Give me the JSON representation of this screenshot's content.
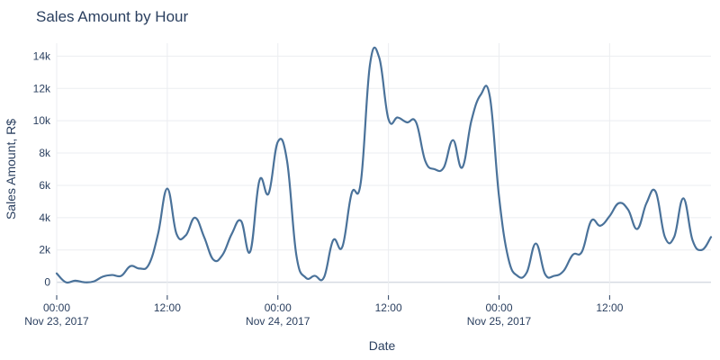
{
  "chart_data": {
    "type": "line",
    "title": "Sales Amount by Hour",
    "xlabel": "Date",
    "ylabel": "Sales Amount, R$",
    "x_unit": "hours since Nov 23, 2017 00:00",
    "xlim": [
      0,
      71
    ],
    "ylim": [
      -800,
      14800
    ],
    "grid": true,
    "line_color": "#4a729a",
    "x_ticks": [
      {
        "x": 0,
        "line1": "00:00",
        "line2": "Nov 23, 2017"
      },
      {
        "x": 12,
        "line1": "12:00",
        "line2": ""
      },
      {
        "x": 24,
        "line1": "00:00",
        "line2": "Nov 24, 2017"
      },
      {
        "x": 36,
        "line1": "12:00",
        "line2": ""
      },
      {
        "x": 48,
        "line1": "00:00",
        "line2": "Nov 25, 2017"
      },
      {
        "x": 60,
        "line1": "12:00",
        "line2": ""
      }
    ],
    "y_ticks": [
      {
        "y": 0,
        "label": "0"
      },
      {
        "y": 2000,
        "label": "2k"
      },
      {
        "y": 4000,
        "label": "4k"
      },
      {
        "y": 6000,
        "label": "6k"
      },
      {
        "y": 8000,
        "label": "8k"
      },
      {
        "y": 10000,
        "label": "10k"
      },
      {
        "y": 12000,
        "label": "12k"
      },
      {
        "y": 14000,
        "label": "14k"
      }
    ],
    "series": [
      {
        "name": "",
        "x": [
          0,
          1,
          2,
          3,
          4,
          5,
          6,
          7,
          8,
          9,
          10,
          11,
          12,
          13,
          14,
          15,
          16,
          17,
          18,
          19,
          20,
          21,
          22,
          23,
          24,
          25,
          26,
          27,
          28,
          29,
          30,
          31,
          32,
          33,
          34,
          35,
          36,
          37,
          38,
          39,
          40,
          41,
          42,
          43,
          44,
          45,
          46,
          47,
          48,
          49,
          50,
          51,
          52,
          53,
          54,
          55,
          56,
          57,
          58,
          59,
          60,
          61,
          62,
          63,
          64,
          65,
          66,
          67,
          68,
          69,
          70,
          71
        ],
        "y": [
          550,
          0,
          100,
          0,
          50,
          350,
          450,
          400,
          1000,
          850,
          1100,
          3000,
          5800,
          3000,
          2900,
          4000,
          2800,
          1400,
          1700,
          3000,
          3800,
          1900,
          6300,
          5500,
          8700,
          7500,
          1700,
          300,
          400,
          300,
          2600,
          2200,
          5500,
          6200,
          13500,
          13900,
          10100,
          10200,
          9900,
          9900,
          7500,
          7000,
          7100,
          8800,
          7100,
          10000,
          11600,
          11500,
          5300,
          1500,
          400,
          600,
          2400,
          500,
          400,
          700,
          1700,
          1900,
          3800,
          3500,
          4100,
          4900,
          4500,
          3300,
          4900,
          5600,
          2800,
          2800,
          5200,
          2600,
          2000,
          2800
        ]
      }
    ]
  }
}
